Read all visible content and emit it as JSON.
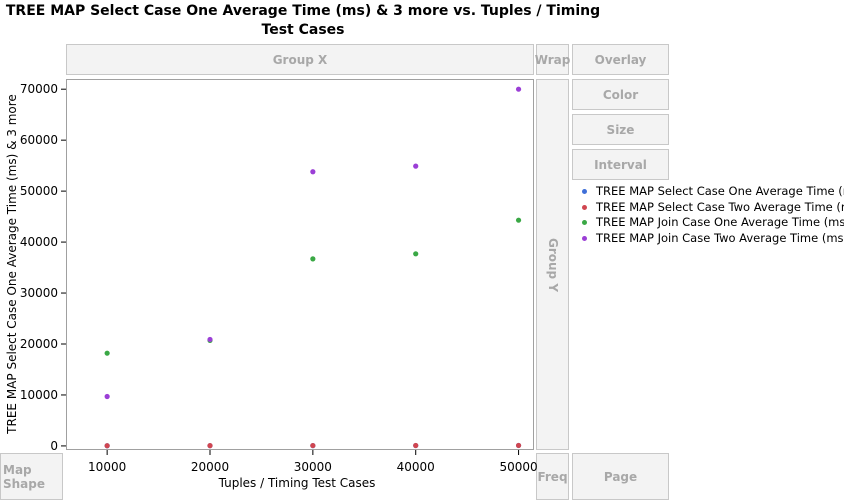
{
  "title": "TREE MAP Select Case One Average Time (ms) & 3 more vs. Tuples / Timing Test Cases",
  "zones": {
    "group_x": "Group X",
    "group_y": "Group Y",
    "wrap": "Wrap",
    "overlay": "Overlay",
    "color": "Color",
    "size": "Size",
    "interval": "Interval",
    "map_shape": "Map Shape",
    "freq": "Freq",
    "page": "Page"
  },
  "chart_data": {
    "type": "scatter",
    "title": "TREE MAP Select Case One Average Time (ms) & 3 more vs. Tuples / Timing Test Cases",
    "xlabel": "Tuples / Timing Test Cases",
    "ylabel": "TREE MAP Select Case One Average Time (ms) & 3 more",
    "xlim": [
      6000,
      51500
    ],
    "ylim": [
      -800,
      72000
    ],
    "xticks": [
      10000,
      20000,
      30000,
      40000,
      50000
    ],
    "yticks": [
      0,
      10000,
      20000,
      30000,
      40000,
      50000,
      60000,
      70000
    ],
    "legend_position": "right",
    "grid": false,
    "x": [
      10000,
      20000,
      30000,
      40000,
      50000
    ],
    "series": [
      {
        "name": "TREE MAP Select Case One Average Time (ms)",
        "color": "#3f6fd8",
        "values": [
          30,
          45,
          60,
          75,
          90
        ]
      },
      {
        "name": "TREE MAP Select Case Two Average Time (ms)",
        "color": "#d04650",
        "values": [
          40,
          55,
          70,
          85,
          100
        ]
      },
      {
        "name": "TREE MAP Join Case One Average Time (ms)",
        "color": "#3aa845",
        "values": [
          18200,
          20700,
          36700,
          37700,
          44300
        ]
      },
      {
        "name": "TREE MAP Join Case Two Average Time (ms)",
        "color": "#9b3fd6",
        "values": [
          9700,
          20900,
          53800,
          54900,
          70000
        ]
      }
    ]
  }
}
